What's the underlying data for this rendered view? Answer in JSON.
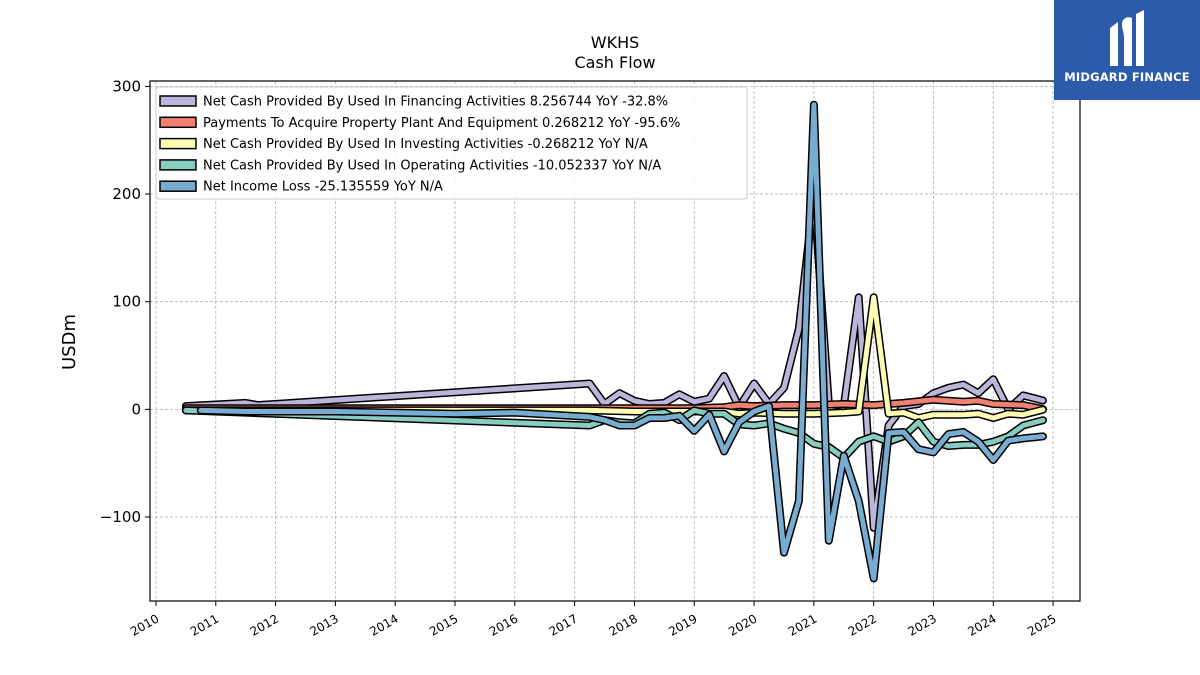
{
  "logo": {
    "text": "MIDGARD FINANCE",
    "bg_color": "#2d5bab"
  },
  "chart_data": {
    "type": "line",
    "title": "WKHS",
    "subtitle": "Cash Flow",
    "xlabel": "",
    "ylabel": "USDm",
    "xlim": [
      2009.9,
      2025.45
    ],
    "ylim": [
      -178,
      305
    ],
    "x_ticks": [
      "2010",
      "2011",
      "2012",
      "2013",
      "2014",
      "2015",
      "2016",
      "2017",
      "2018",
      "2019",
      "2020",
      "2021",
      "2022",
      "2023",
      "2024",
      "2025"
    ],
    "y_ticks": [
      300,
      200,
      100,
      0,
      -100
    ],
    "y_tick_labels": [
      "300",
      "200",
      "100",
      "0",
      "−100"
    ],
    "grid": true,
    "legend_position": "top-left",
    "series": [
      {
        "name": "Net Cash Provided By Used In Financing Activities",
        "legend": "Net Cash Provided By Used In Financing Activities  8.256744 YoY -32.8%",
        "color": "#bcb5d9",
        "points": [
          [
            2010.5,
            3
          ],
          [
            2011.5,
            6
          ],
          [
            2011.7,
            4
          ],
          [
            2017.25,
            24
          ],
          [
            2017.5,
            5
          ],
          [
            2017.75,
            15
          ],
          [
            2018.0,
            8
          ],
          [
            2018.25,
            5
          ],
          [
            2018.5,
            6
          ],
          [
            2018.75,
            14
          ],
          [
            2019.0,
            7
          ],
          [
            2019.25,
            10
          ],
          [
            2019.5,
            31
          ],
          [
            2019.75,
            2
          ],
          [
            2020.0,
            24
          ],
          [
            2020.25,
            5
          ],
          [
            2020.5,
            20
          ],
          [
            2020.75,
            75
          ],
          [
            2021.0,
            200
          ],
          [
            2021.25,
            5
          ],
          [
            2021.5,
            3
          ],
          [
            2021.75,
            104
          ],
          [
            2022.0,
            -110
          ],
          [
            2022.25,
            -15
          ],
          [
            2022.5,
            3
          ],
          [
            2022.75,
            5
          ],
          [
            2023.0,
            15
          ],
          [
            2023.25,
            20
          ],
          [
            2023.5,
            23
          ],
          [
            2023.75,
            15
          ],
          [
            2024.0,
            28
          ],
          [
            2024.25,
            0
          ],
          [
            2024.5,
            13
          ],
          [
            2024.83,
            8.26
          ]
        ]
      },
      {
        "name": "Payments To Acquire Property Plant And Equipment",
        "legend": "Payments To Acquire Property Plant And Equipment  0.268212 YoY -95.6%",
        "color": "#f0806f",
        "points": [
          [
            2010.5,
            1
          ],
          [
            2017.25,
            1
          ],
          [
            2018.0,
            1
          ],
          [
            2019.0,
            1
          ],
          [
            2019.5,
            2
          ],
          [
            2019.75,
            4
          ],
          [
            2020.0,
            3
          ],
          [
            2020.5,
            4
          ],
          [
            2021.0,
            4
          ],
          [
            2021.5,
            5
          ],
          [
            2022.0,
            4
          ],
          [
            2022.5,
            6
          ],
          [
            2023.0,
            9
          ],
          [
            2023.5,
            7
          ],
          [
            2023.75,
            8
          ],
          [
            2024.0,
            5
          ],
          [
            2024.5,
            4
          ],
          [
            2024.83,
            0.27
          ]
        ]
      },
      {
        "name": "Net Cash Provided By Used In Investing Activities",
        "legend": "Net Cash Provided By Used In Investing Activities  -0.268212 YoY N/A",
        "color": "#fdfdb3",
        "points": [
          [
            2010.5,
            -1
          ],
          [
            2017.25,
            -1
          ],
          [
            2018.0,
            -2
          ],
          [
            2019.0,
            -2
          ],
          [
            2019.5,
            -2
          ],
          [
            2019.75,
            -4
          ],
          [
            2020.0,
            -3
          ],
          [
            2020.5,
            -4
          ],
          [
            2021.0,
            -4
          ],
          [
            2021.5,
            -3
          ],
          [
            2021.75,
            -2
          ],
          [
            2022.0,
            104
          ],
          [
            2022.25,
            -4
          ],
          [
            2022.5,
            -3
          ],
          [
            2022.75,
            -8
          ],
          [
            2023.0,
            -5
          ],
          [
            2023.5,
            -5
          ],
          [
            2023.75,
            -4
          ],
          [
            2024.0,
            -8
          ],
          [
            2024.25,
            -4
          ],
          [
            2024.5,
            -5
          ],
          [
            2024.83,
            -0.27
          ]
        ]
      },
      {
        "name": "Net Cash Provided By Used In Operating Activities",
        "legend": "Net Cash Provided By Used In Operating Activities  -10.052337 YoY N/A",
        "color": "#86cdbf",
        "points": [
          [
            2010.5,
            -1
          ],
          [
            2017.25,
            -15
          ],
          [
            2017.5,
            -10
          ],
          [
            2017.75,
            -12
          ],
          [
            2018.0,
            -13
          ],
          [
            2018.25,
            -4
          ],
          [
            2018.5,
            -3
          ],
          [
            2018.75,
            -10
          ],
          [
            2019.0,
            -1
          ],
          [
            2019.25,
            -4
          ],
          [
            2019.5,
            -4
          ],
          [
            2019.75,
            -14
          ],
          [
            2020.0,
            -15
          ],
          [
            2020.25,
            -13
          ],
          [
            2020.5,
            -18
          ],
          [
            2020.75,
            -22
          ],
          [
            2021.0,
            -32
          ],
          [
            2021.25,
            -35
          ],
          [
            2021.5,
            -45
          ],
          [
            2021.75,
            -30
          ],
          [
            2022.0,
            -25
          ],
          [
            2022.25,
            -30
          ],
          [
            2022.5,
            -25
          ],
          [
            2022.75,
            -12
          ],
          [
            2023.0,
            -30
          ],
          [
            2023.25,
            -34
          ],
          [
            2023.5,
            -33
          ],
          [
            2023.75,
            -33
          ],
          [
            2024.0,
            -30
          ],
          [
            2024.25,
            -25
          ],
          [
            2024.5,
            -15
          ],
          [
            2024.83,
            -10.05
          ]
        ]
      },
      {
        "name": "Net Income Loss",
        "legend": "Net Income Loss  -25.135559 YoY N/A",
        "color": "#78acd1",
        "points": [
          [
            2010.75,
            -1
          ],
          [
            2011.5,
            -2
          ],
          [
            2013.0,
            -2
          ],
          [
            2015.0,
            -4
          ],
          [
            2016.0,
            -3
          ],
          [
            2017.25,
            -7
          ],
          [
            2017.5,
            -10
          ],
          [
            2017.75,
            -15
          ],
          [
            2018.0,
            -15
          ],
          [
            2018.25,
            -8
          ],
          [
            2018.5,
            -8
          ],
          [
            2018.75,
            -6
          ],
          [
            2019.0,
            -20
          ],
          [
            2019.25,
            -5
          ],
          [
            2019.5,
            -39
          ],
          [
            2019.75,
            -12
          ],
          [
            2020.0,
            -2
          ],
          [
            2020.25,
            3
          ],
          [
            2020.5,
            -133
          ],
          [
            2020.75,
            -85
          ],
          [
            2021.0,
            283
          ],
          [
            2021.25,
            -122
          ],
          [
            2021.5,
            -43
          ],
          [
            2021.75,
            -85
          ],
          [
            2022.0,
            -157
          ],
          [
            2022.25,
            -22
          ],
          [
            2022.5,
            -21
          ],
          [
            2022.75,
            -37
          ],
          [
            2023.0,
            -40
          ],
          [
            2023.25,
            -23
          ],
          [
            2023.5,
            -21
          ],
          [
            2023.75,
            -30
          ],
          [
            2024.0,
            -47
          ],
          [
            2024.25,
            -29
          ],
          [
            2024.5,
            -27
          ],
          [
            2024.83,
            -25.14
          ]
        ]
      }
    ]
  }
}
